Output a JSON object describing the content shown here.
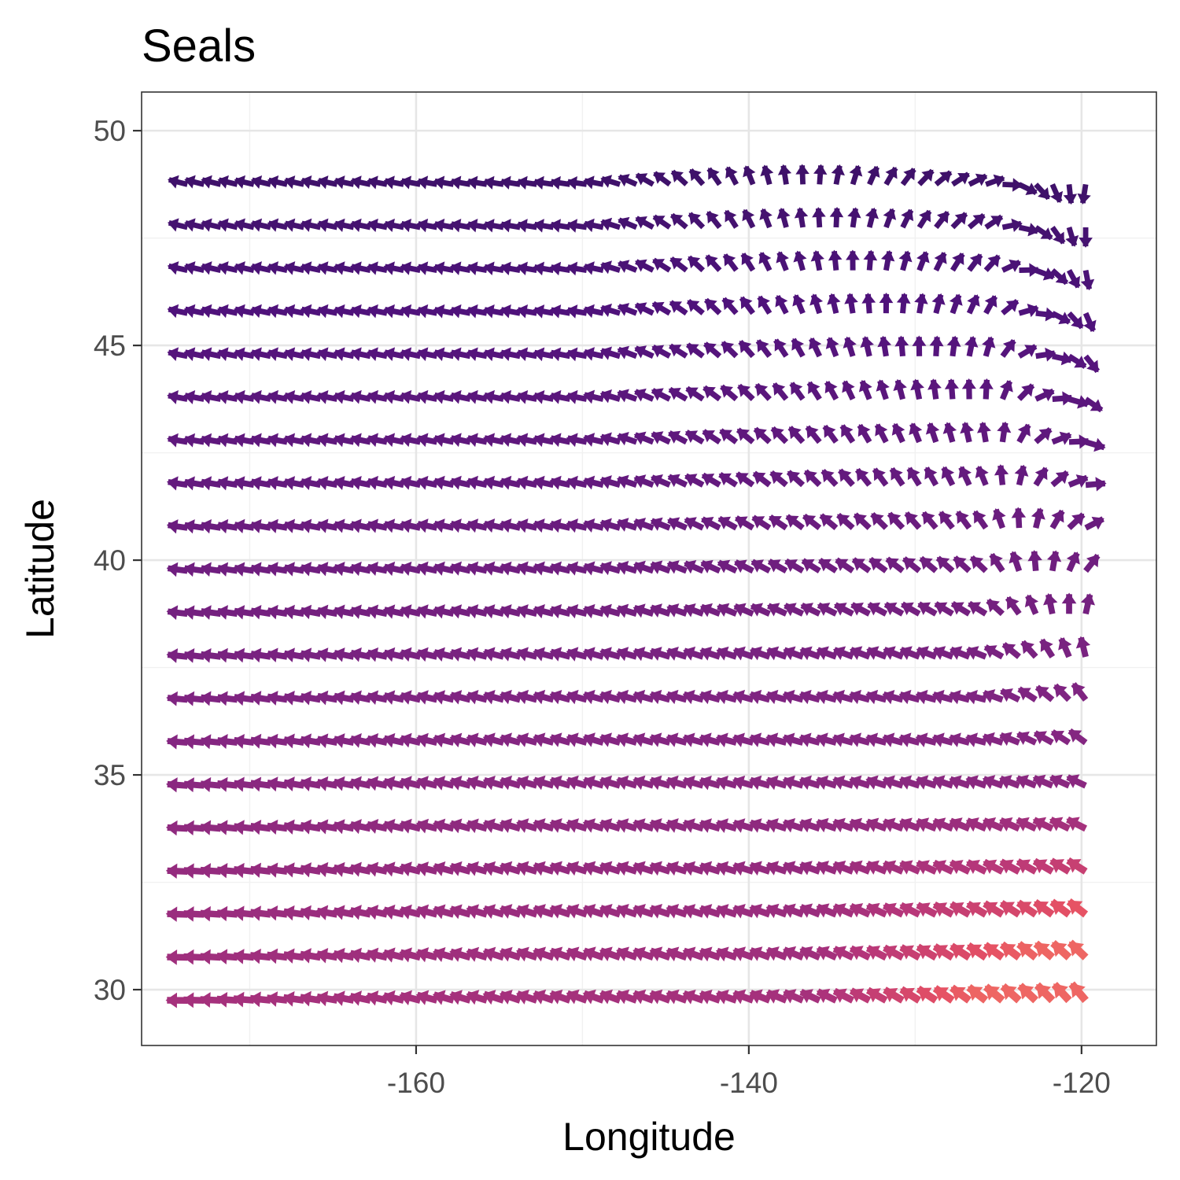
{
  "chart_data": {
    "type": "vector_field",
    "title": "Seals",
    "xlabel": "Longitude",
    "ylabel": "Latitude",
    "xlim": [
      -176.5,
      -115.5
    ],
    "ylim": [
      28.7,
      50.9
    ],
    "x_ticks": [
      -160,
      -140,
      -120
    ],
    "x_tick_labels": [
      "-160",
      "-140",
      "-120"
    ],
    "y_ticks": [
      30,
      35,
      40,
      45,
      50
    ],
    "y_tick_labels": [
      "30",
      "35",
      "40",
      "45",
      "50"
    ],
    "grid": true,
    "legend": "none",
    "color_scale": "magma",
    "color_stops": [
      "#000004",
      "#1c1044",
      "#4f127b",
      "#812581",
      "#b5367a",
      "#e55064",
      "#fb8761"
    ],
    "field": {
      "lon_start": -173.75,
      "lon_step": 1.0,
      "lon_count": 55,
      "lat_start": 29.75,
      "lat_step": 1.0,
      "lat_count": 20
    }
  }
}
